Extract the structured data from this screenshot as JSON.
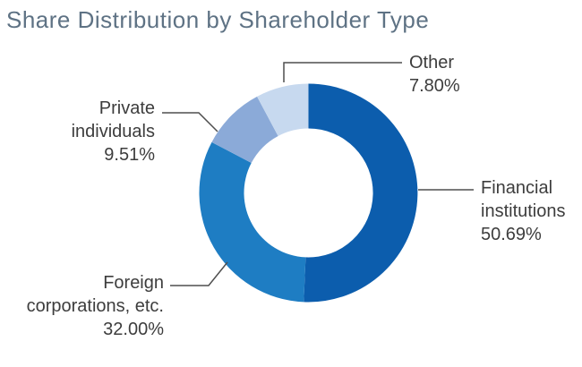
{
  "page": {
    "background": "#ffffff"
  },
  "title": {
    "text": "Share Distribution by Shareholder Type",
    "color": "#5e7284"
  },
  "chart_data": {
    "type": "pie",
    "subtype": "donut",
    "title": "Share Distribution by Shareholder Type",
    "categories": [
      "Financial institutions",
      "Foreign corporations, etc.",
      "Private individuals",
      "Other"
    ],
    "values": [
      50.69,
      32.0,
      9.51,
      7.8
    ],
    "unit": "%",
    "start_angle_deg": 0,
    "direction": "clockwise",
    "donut_hole_ratio": 0.59,
    "legend_position": "none",
    "label_style": "outside-with-leader-lines",
    "label_text_color": "#3d3d3d",
    "leader_line_color": "#4f4f4f",
    "segments": [
      {
        "name": "Financial institutions",
        "value": 50.69,
        "pct_label": "50.69%",
        "color": "#0c5dad"
      },
      {
        "name": "Foreign corporations, etc.",
        "value": 32.0,
        "pct_label": "32.00%",
        "color": "#1e7dc3"
      },
      {
        "name": "Private individuals",
        "value": 9.51,
        "pct_label": "9.51%",
        "color": "#8baad8"
      },
      {
        "name": "Other",
        "value": 7.8,
        "pct_label": "7.80%",
        "color": "#c7d9ef"
      }
    ]
  }
}
